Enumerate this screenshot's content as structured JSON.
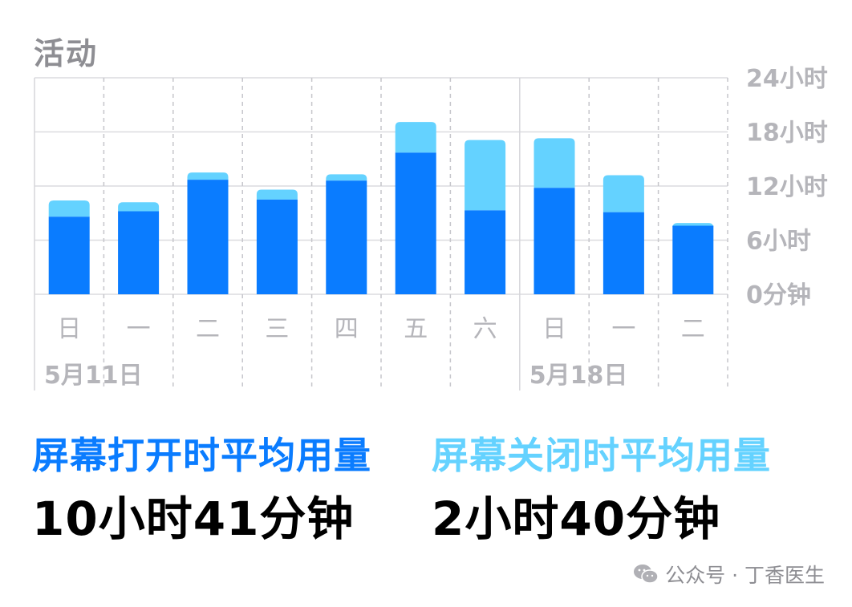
{
  "section_title": "活动",
  "chart_data": {
    "type": "bar",
    "stacked": true,
    "categories": [
      "日",
      "一",
      "二",
      "三",
      "四",
      "五",
      "六",
      "日",
      "一",
      "二"
    ],
    "week_labels": [
      {
        "text": "5月11日",
        "start_index": 0
      },
      {
        "text": "5月18日",
        "start_index": 7
      }
    ],
    "series": [
      {
        "values": [
          8.6,
          9.2,
          12.7,
          10.5,
          12.6,
          15.7,
          9.3,
          11.8,
          9.1,
          7.6
        ],
        "color": "#0a7cff"
      },
      {
        "values": [
          1.8,
          1.0,
          0.8,
          1.1,
          0.7,
          3.4,
          7.8,
          5.5,
          4.1,
          0.3
        ],
        "color": "#64d2ff"
      }
    ],
    "ylim": [
      0,
      24
    ],
    "yticks": [
      0,
      6,
      12,
      18,
      24
    ],
    "ytick_labels": [
      "0分钟",
      "6小时",
      "12小时",
      "18小时",
      "24小时"
    ],
    "y_axis_position": "right",
    "grid": true
  },
  "stats": {
    "on": {
      "label": "屏幕打开时平均用量",
      "value": "10小时41分钟",
      "color": "#0a7cff"
    },
    "off": {
      "label": "屏幕关闭时平均用量",
      "value": "2小时40分钟",
      "color": "#64d2ff"
    }
  },
  "watermark": {
    "text": "公众号 · 丁香医生",
    "icon": "wechat-icon"
  }
}
